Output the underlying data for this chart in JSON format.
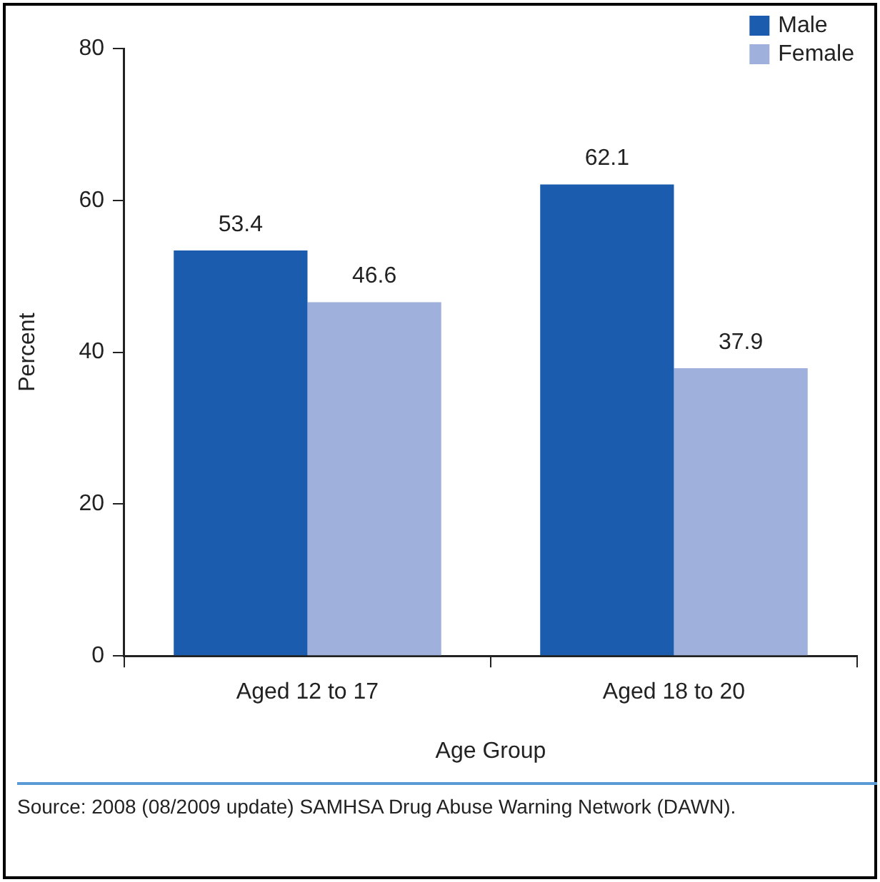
{
  "chart_data": {
    "type": "bar",
    "xlabel": "Age Group",
    "ylabel": "Percent",
    "categories": [
      "Aged 12 to 17",
      "Aged 18 to 20"
    ],
    "series": [
      {
        "name": "Male",
        "color": "#1b5cae",
        "values": [
          53.4,
          62.1
        ]
      },
      {
        "name": "Female",
        "color": "#9fb0dd",
        "values": [
          46.6,
          37.9
        ]
      }
    ],
    "ylim": [
      0,
      80
    ],
    "yticks": [
      0,
      20,
      40,
      60,
      80
    ],
    "grid": false,
    "legend": "top right",
    "data_labels": true,
    "annotations": [
      "Source: 2008 (08/2009 update) SAMHSA Drug Abuse Warning Network (DAWN)."
    ]
  }
}
